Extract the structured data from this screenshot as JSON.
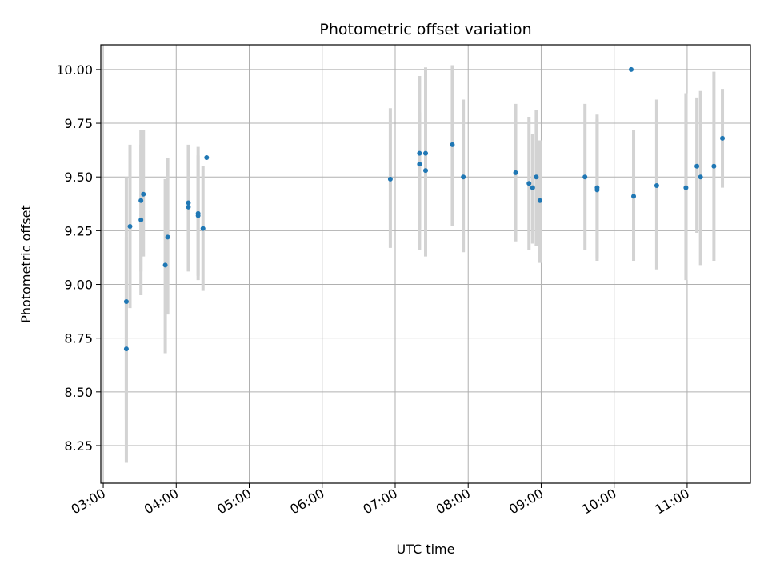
{
  "chart_data": {
    "type": "scatter",
    "title": "Photometric offset variation",
    "xlabel": "UTC time",
    "ylabel": "Photometric offset",
    "xlim": [
      "02:58",
      "11:52"
    ],
    "ylim": [
      8.075,
      10.115
    ],
    "grid": true,
    "marker_color": "#1f77b4",
    "errorbar_color": "#d3d3d3",
    "x_ticks": [
      "03:00",
      "04:00",
      "05:00",
      "06:00",
      "07:00",
      "08:00",
      "09:00",
      "10:00",
      "11:00"
    ],
    "y_ticks": [
      "8.25",
      "8.50",
      "8.75",
      "9.00",
      "9.25",
      "9.50",
      "9.75",
      "10.00"
    ],
    "points": [
      {
        "x": "03:19",
        "y": 8.92,
        "err_low": 8.37,
        "err_high": 9.5
      },
      {
        "x": "03:19",
        "y": 8.7,
        "err_low": 8.17,
        "err_high": 9.22
      },
      {
        "x": "03:22",
        "y": 9.27,
        "err_low": 8.89,
        "err_high": 9.65
      },
      {
        "x": "03:31",
        "y": 9.39,
        "err_low": 9.06,
        "err_high": 9.72
      },
      {
        "x": "03:31",
        "y": 9.3,
        "err_low": 8.95,
        "err_high": 9.65
      },
      {
        "x": "03:33",
        "y": 9.42,
        "err_low": 9.13,
        "err_high": 9.72
      },
      {
        "x": "03:51",
        "y": 9.09,
        "err_low": 8.68,
        "err_high": 9.49
      },
      {
        "x": "03:53",
        "y": 9.22,
        "err_low": 8.86,
        "err_high": 9.59
      },
      {
        "x": "04:10",
        "y": 9.38,
        "err_low": 9.06,
        "err_high": 9.65
      },
      {
        "x": "04:10",
        "y": 9.36,
        "err_low": 9.1,
        "err_high": 9.6
      },
      {
        "x": "04:18",
        "y": 9.33,
        "err_low": 9.02,
        "err_high": 9.64
      },
      {
        "x": "04:18",
        "y": 9.32,
        "err_low": 9.04,
        "err_high": 9.6
      },
      {
        "x": "04:22",
        "y": 9.26,
        "err_low": 8.97,
        "err_high": 9.55
      },
      {
        "x": "04:25",
        "y": 9.59,
        "err_low": 9.59,
        "err_high": 9.59
      },
      {
        "x": "06:56",
        "y": 9.49,
        "err_low": 9.17,
        "err_high": 9.82
      },
      {
        "x": "07:20",
        "y": 9.61,
        "err_low": 9.26,
        "err_high": 9.97
      },
      {
        "x": "07:20",
        "y": 9.56,
        "err_low": 9.16,
        "err_high": 9.8
      },
      {
        "x": "07:25",
        "y": 9.61,
        "err_low": 9.21,
        "err_high": 10.01
      },
      {
        "x": "07:25",
        "y": 9.53,
        "err_low": 9.13,
        "err_high": 9.93
      },
      {
        "x": "07:47",
        "y": 9.65,
        "err_low": 9.27,
        "err_high": 10.02
      },
      {
        "x": "07:56",
        "y": 9.5,
        "err_low": 9.15,
        "err_high": 9.86
      },
      {
        "x": "08:39",
        "y": 9.52,
        "err_low": 9.2,
        "err_high": 9.84
      },
      {
        "x": "08:50",
        "y": 9.47,
        "err_low": 9.16,
        "err_high": 9.78
      },
      {
        "x": "08:53",
        "y": 9.45,
        "err_low": 9.19,
        "err_high": 9.7
      },
      {
        "x": "08:56",
        "y": 9.5,
        "err_low": 9.18,
        "err_high": 9.81
      },
      {
        "x": "08:59",
        "y": 9.39,
        "err_low": 9.1,
        "err_high": 9.67
      },
      {
        "x": "09:36",
        "y": 9.5,
        "err_low": 9.16,
        "err_high": 9.84
      },
      {
        "x": "09:46",
        "y": 9.45,
        "err_low": 9.12,
        "err_high": 9.79
      },
      {
        "x": "09:46",
        "y": 9.44,
        "err_low": 9.11,
        "err_high": 9.77
      },
      {
        "x": "10:14",
        "y": 10.0,
        "err_low": 10.0,
        "err_high": 10.0
      },
      {
        "x": "10:16",
        "y": 9.41,
        "err_low": 9.11,
        "err_high": 9.72
      },
      {
        "x": "10:35",
        "y": 9.46,
        "err_low": 9.07,
        "err_high": 9.86
      },
      {
        "x": "10:59",
        "y": 9.45,
        "err_low": 9.02,
        "err_high": 9.89
      },
      {
        "x": "11:08",
        "y": 9.55,
        "err_low": 9.24,
        "err_high": 9.87
      },
      {
        "x": "11:11",
        "y": 9.5,
        "err_low": 9.09,
        "err_high": 9.9
      },
      {
        "x": "11:22",
        "y": 9.55,
        "err_low": 9.11,
        "err_high": 9.99
      },
      {
        "x": "11:29",
        "y": 9.68,
        "err_low": 9.45,
        "err_high": 9.91
      }
    ]
  }
}
